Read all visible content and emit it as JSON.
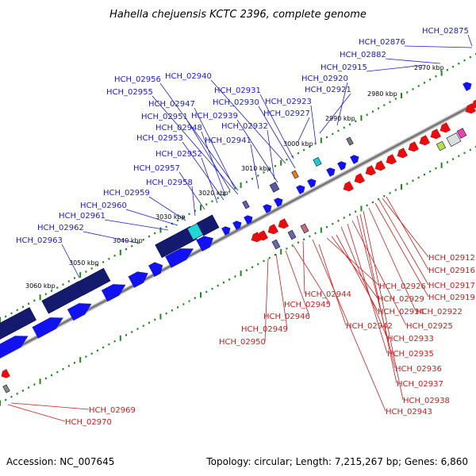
{
  "title": "Hahella chejuensis KCTC 2396, complete genome",
  "footer": {
    "accession": "Accession: NC_007645",
    "topology": "Topology: circular; Length: 7,215,267 bp; Genes: 6,860"
  },
  "colors": {
    "forward_label": "#1c1ccc",
    "reverse_label": "#cc1c1c",
    "forward_arrow": "#1212ee",
    "reverse_arrow": "#e80c0c",
    "dark_block": "#141b6e",
    "backbone": "#9a9a9a",
    "tick": "#1b8a1b"
  },
  "kbp_ticks": [
    "2970 kbp",
    "2980 kbp",
    "2990 kbp",
    "3000 kbp",
    "3010 kbp",
    "3020 kbp",
    "3030 kbp",
    "3040 kbp",
    "3050 kbp",
    "3060 kbp"
  ],
  "forward_labels": [
    "HCH_02875",
    "HCH_02876",
    "HCH_02882",
    "HCH_02915",
    "HCH_02920",
    "HCH_02921",
    "HCH_02923",
    "HCH_02927",
    "HCH_02930",
    "HCH_02931",
    "HCH_02940",
    "HCH_02956",
    "HCH_02955",
    "HCH_02947",
    "HCH_02939",
    "HCH_02951",
    "HCH_02932",
    "HCH_02948",
    "HCH_02953",
    "HCH_02941",
    "HCH_02952",
    "HCH_02957",
    "HCH_02958",
    "HCH_02959",
    "HCH_02960",
    "HCH_02961",
    "HCH_02962",
    "HCH_02963"
  ],
  "reverse_labels": [
    "HCH_02912",
    "HCH_02916",
    "HCH_02926",
    "HCH_02917",
    "HCH_02929",
    "HCH_02919",
    "HCH_02944",
    "HCH_02934",
    "HCH_02922",
    "HCH_02945",
    "HCH_02946",
    "HCH_02942",
    "HCH_02925",
    "HCH_02949",
    "HCH_02933",
    "HCH_02950",
    "HCH_02935",
    "HCH_02936",
    "HCH_02937",
    "HCH_02938",
    "HCH_02943",
    "HCH_02969",
    "HCH_02970"
  ]
}
